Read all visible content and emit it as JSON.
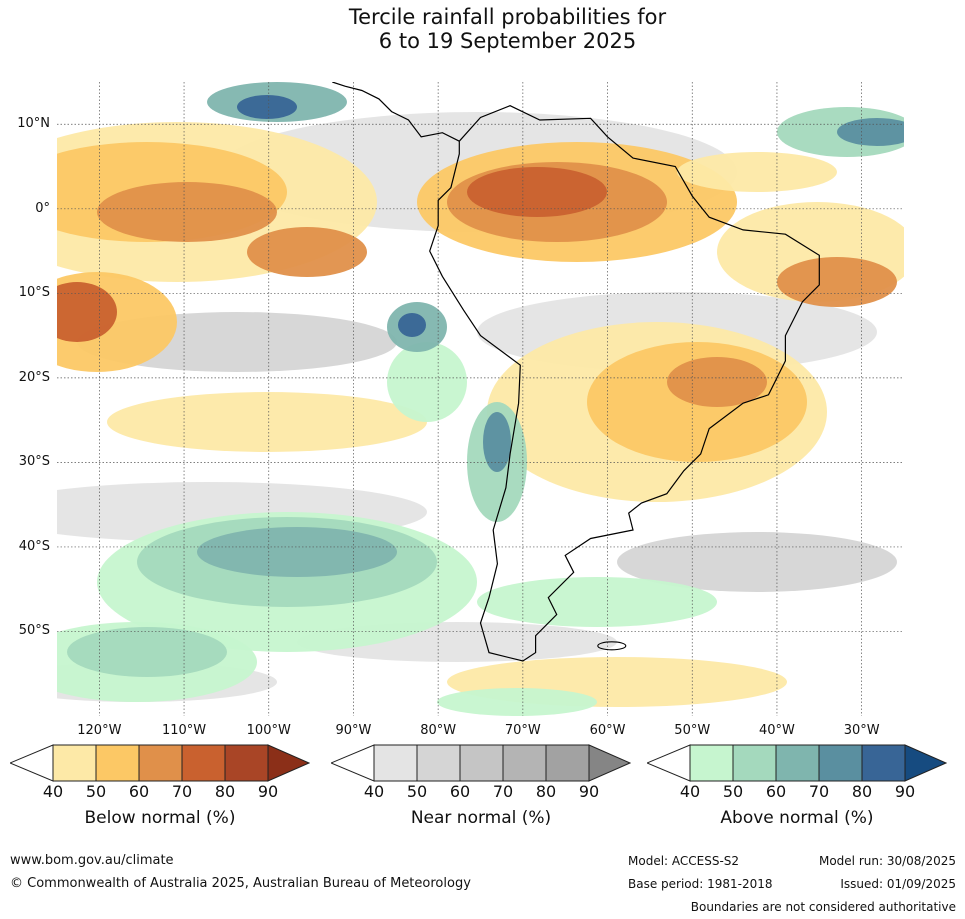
{
  "title": {
    "line1": "Tercile rainfall probabilities for",
    "line2": "6 to 19 September 2025"
  },
  "map": {
    "lat_labels": [
      "10°N",
      "0°",
      "10°S",
      "20°S",
      "30°S",
      "40°S",
      "50°S"
    ],
    "lon_labels": [
      "120°W",
      "110°W",
      "100°W",
      "90°W",
      "80°W",
      "70°W",
      "60°W",
      "50°W",
      "40°W",
      "30°W"
    ]
  },
  "colorbars": [
    {
      "title": "Below normal (%)",
      "ticks": [
        "40",
        "50",
        "60",
        "70",
        "80",
        "90"
      ],
      "colors": [
        "#fde9a7",
        "#fcc865",
        "#e0904a",
        "#c9612f",
        "#a94526",
        "#8b2f18"
      ]
    },
    {
      "title": "Near normal (%)",
      "ticks": [
        "40",
        "50",
        "60",
        "70",
        "80",
        "90"
      ],
      "colors": [
        "#e4e4e4",
        "#d5d5d5",
        "#c5c5c5",
        "#b4b4b4",
        "#a2a2a2",
        "#858585"
      ]
    },
    {
      "title": "Above normal (%)",
      "ticks": [
        "40",
        "50",
        "60",
        "70",
        "80",
        "90"
      ],
      "colors": [
        "#c6f5cf",
        "#a4d9bd",
        "#7fb5ae",
        "#5a8fa0",
        "#386596",
        "#164b80"
      ]
    }
  ],
  "footer": {
    "website": "www.bom.gov.au/climate",
    "copyright": "© Commonwealth of Australia 2025, Australian Bureau of Meteorology",
    "model": "Model: ACCESS-S2",
    "base_period": "Base period: 1981-2018",
    "model_run": "Model run: 30/08/2025",
    "issued": "Issued: 01/09/2025",
    "disclaimer": "Boundaries are not considered authoritative"
  }
}
